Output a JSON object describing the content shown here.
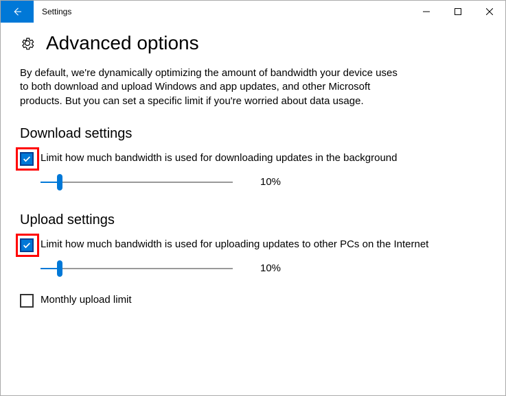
{
  "colors": {
    "accent": "#0078d7",
    "highlight_border": "#ff0000",
    "text": "#000000",
    "background": "#ffffff",
    "slider_rail": "#999999"
  },
  "titlebar": {
    "app_name": "Settings"
  },
  "page": {
    "title": "Advanced options",
    "intro": "By default, we're dynamically optimizing the amount of bandwidth your device uses to both download and upload Windows and app updates, and other Microsoft products. But you can set a specific limit if you're worried about data usage."
  },
  "download": {
    "section_title": "Download settings",
    "limit_label": "Limit how much bandwidth is used for downloading updates in the background",
    "limit_checked": true,
    "slider_percent": 10,
    "slider_value_text": "10%"
  },
  "upload": {
    "section_title": "Upload settings",
    "limit_label": "Limit how much bandwidth is used for uploading updates to other PCs on the Internet",
    "limit_checked": true,
    "slider_percent": 10,
    "slider_value_text": "10%",
    "monthly_limit_label": "Monthly upload limit",
    "monthly_limit_checked": false
  }
}
